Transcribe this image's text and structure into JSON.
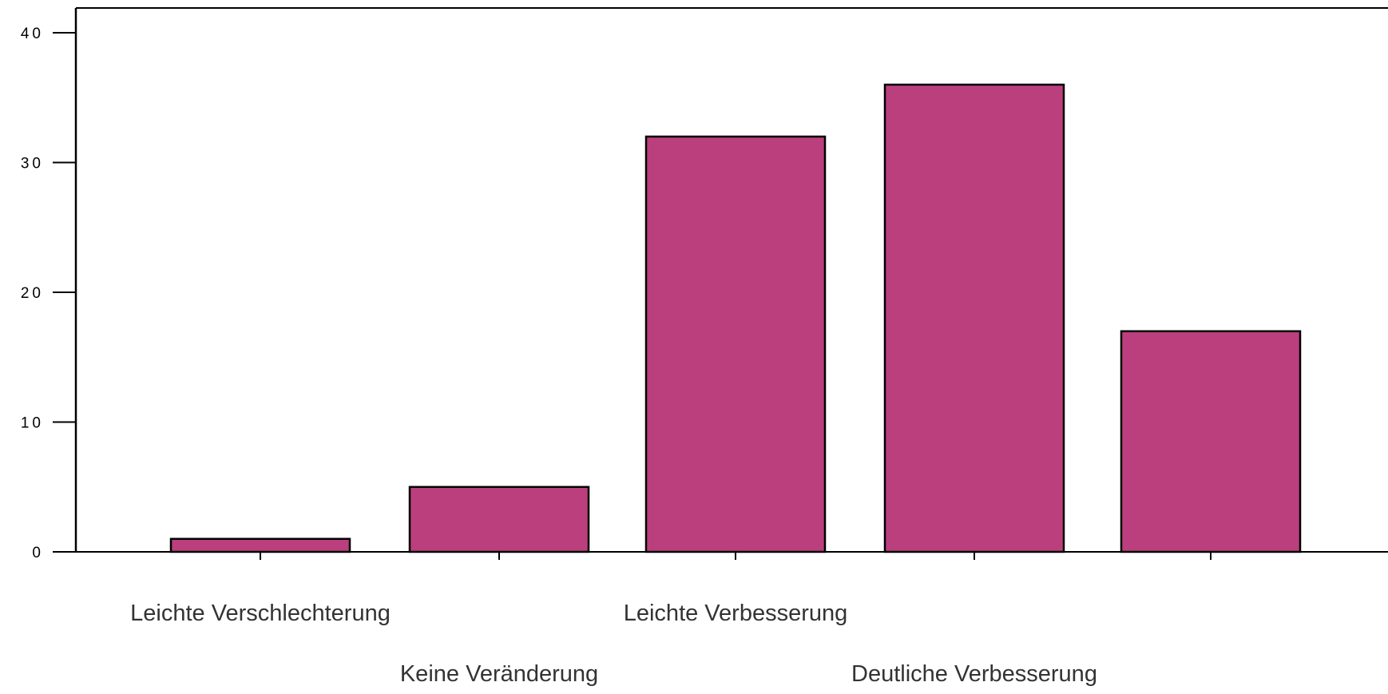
{
  "colors": {
    "bar_fill": "#bb3f7d",
    "bar_stroke": "#000000",
    "axis": "#000000",
    "background": "#ffffff"
  },
  "chart_data": {
    "type": "bar",
    "categories": [
      "Leichte Verschlechterung",
      "Keine Veränderung",
      "Leichte Verbesserung",
      "Deutliche Verbesserung",
      ""
    ],
    "values": [
      1,
      5,
      32,
      36,
      17
    ],
    "ylim": [
      0,
      40
    ],
    "yticks": [
      0,
      10,
      20,
      30,
      40
    ],
    "title": "",
    "xlabel": "",
    "ylabel": "",
    "grid": false,
    "legend": "none"
  }
}
